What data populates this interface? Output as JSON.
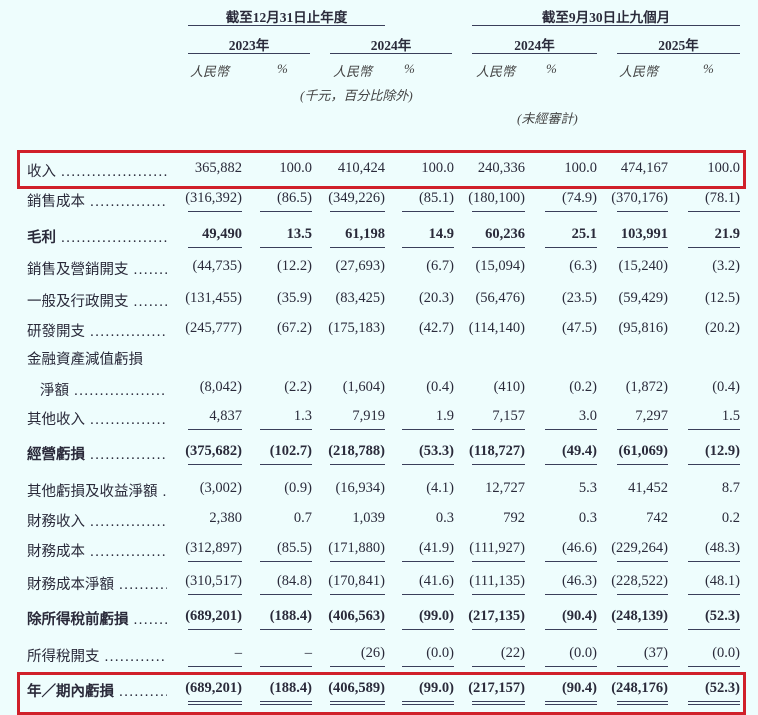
{
  "header": {
    "group1": "截至12月31日止年度",
    "group2": "截至9月30日止九個月",
    "years": [
      "2023年",
      "2024年",
      "2024年",
      "2025年"
    ],
    "currency_label": "人民幣",
    "percent_label": "%",
    "unit_note": "(千元，百分比除外)",
    "unaudited_note": "(未經審計)"
  },
  "highlight_color": "#d0202a",
  "rows": [
    {
      "label": "收入",
      "bold": false,
      "values": [
        "365,882",
        "100.0",
        "410,424",
        "100.0",
        "240,336",
        "100.0",
        "474,167",
        "100.0"
      ]
    },
    {
      "label": "銷售成本",
      "bold": false,
      "values": [
        "(316,392)",
        "(86.5)",
        "(349,226)",
        "(85.1)",
        "(180,100)",
        "(74.9)",
        "(370,176)",
        "(78.1)"
      ]
    },
    {
      "label": "毛利",
      "bold": true,
      "values": [
        "49,490",
        "13.5",
        "61,198",
        "14.9",
        "60,236",
        "25.1",
        "103,991",
        "21.9"
      ]
    },
    {
      "label": "銷售及營銷開支",
      "bold": false,
      "values": [
        "(44,735)",
        "(12.2)",
        "(27,693)",
        "(6.7)",
        "(15,094)",
        "(6.3)",
        "(15,240)",
        "(3.2)"
      ]
    },
    {
      "label": "一般及行政開支",
      "bold": false,
      "values": [
        "(131,455)",
        "(35.9)",
        "(83,425)",
        "(20.3)",
        "(56,476)",
        "(23.5)",
        "(59,429)",
        "(12.5)"
      ]
    },
    {
      "label": "研發開支",
      "bold": false,
      "values": [
        "(245,777)",
        "(67.2)",
        "(175,183)",
        "(42.7)",
        "(114,140)",
        "(47.5)",
        "(95,816)",
        "(20.2)"
      ]
    },
    {
      "label": "金融資產減值虧損",
      "bold": false,
      "values": []
    },
    {
      "label": "淨額",
      "bold": false,
      "values": [
        "(8,042)",
        "(2.2)",
        "(1,604)",
        "(0.4)",
        "(410)",
        "(0.2)",
        "(1,872)",
        "(0.4)"
      ]
    },
    {
      "label": "其他收入",
      "bold": false,
      "values": [
        "4,837",
        "1.3",
        "7,919",
        "1.9",
        "7,157",
        "3.0",
        "7,297",
        "1.5"
      ]
    },
    {
      "label": "經營虧損",
      "bold": true,
      "values": [
        "(375,682)",
        "(102.7)",
        "(218,788)",
        "(53.3)",
        "(118,727)",
        "(49.4)",
        "(61,069)",
        "(12.9)"
      ]
    },
    {
      "label": "其他虧損及收益淨額",
      "bold": false,
      "values": [
        "(3,002)",
        "(0.9)",
        "(16,934)",
        "(4.1)",
        "12,727",
        "5.3",
        "41,452",
        "8.7"
      ]
    },
    {
      "label": "財務收入",
      "bold": false,
      "values": [
        "2,380",
        "0.7",
        "1,039",
        "0.3",
        "792",
        "0.3",
        "742",
        "0.2"
      ]
    },
    {
      "label": "財務成本",
      "bold": false,
      "values": [
        "(312,897)",
        "(85.5)",
        "(171,880)",
        "(41.9)",
        "(111,927)",
        "(46.6)",
        "(229,264)",
        "(48.3)"
      ]
    },
    {
      "label": "財務成本淨額",
      "bold": false,
      "values": [
        "(310,517)",
        "(84.8)",
        "(170,841)",
        "(41.6)",
        "(111,135)",
        "(46.3)",
        "(228,522)",
        "(48.1)"
      ]
    },
    {
      "label": "除所得稅前虧損",
      "bold": true,
      "values": [
        "(689,201)",
        "(188.4)",
        "(406,563)",
        "(99.0)",
        "(217,135)",
        "(90.4)",
        "(248,139)",
        "(52.3)"
      ]
    },
    {
      "label": "所得稅開支",
      "bold": false,
      "values": [
        "–",
        "–",
        "(26)",
        "(0.0)",
        "(22)",
        "(0.0)",
        "(37)",
        "(0.0)"
      ]
    },
    {
      "label": "年／期內虧損",
      "bold": true,
      "values": [
        "(689,201)",
        "(188.4)",
        "(406,589)",
        "(99.0)",
        "(217,157)",
        "(90.4)",
        "(248,176)",
        "(52.3)"
      ]
    }
  ]
}
